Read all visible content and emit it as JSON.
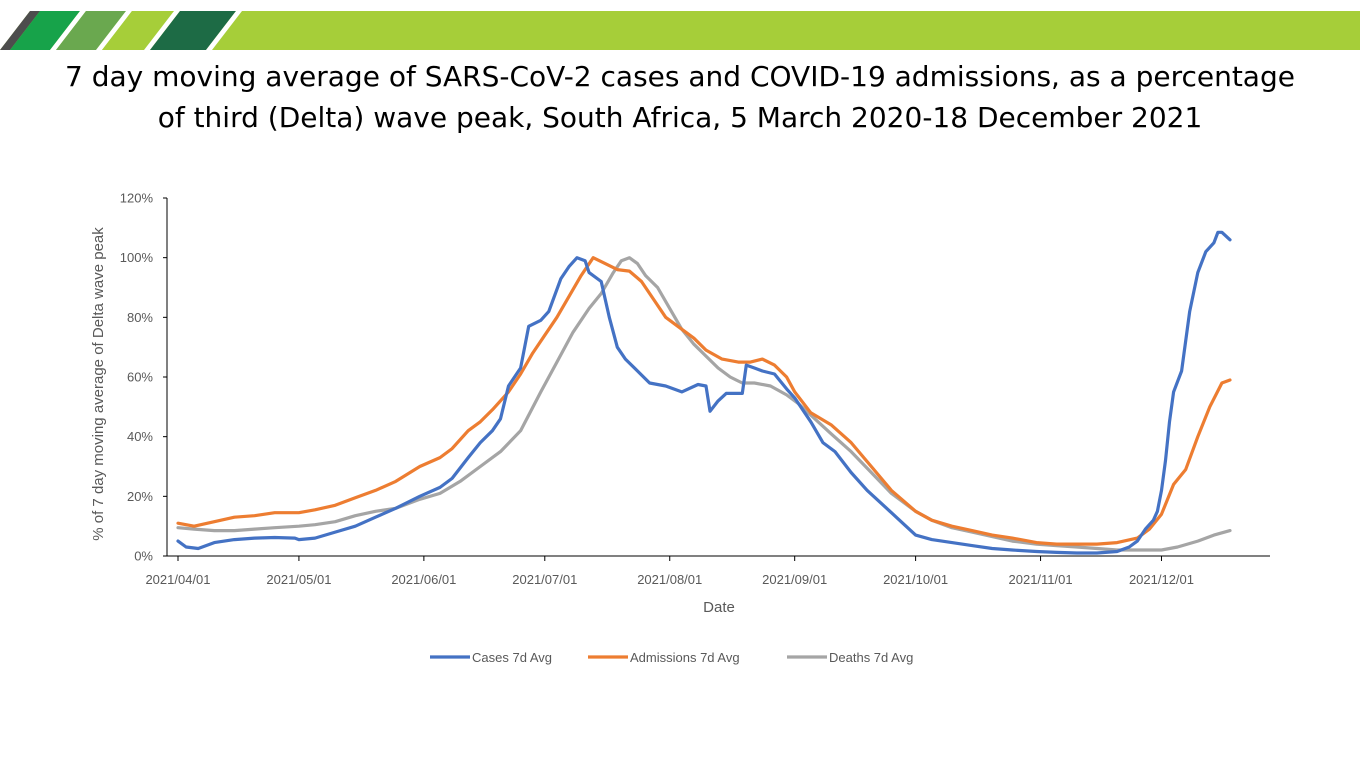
{
  "title": {
    "line1": "7 day moving average of SARS-CoV-2 cases and COVID-19 admissions, as a percentage",
    "line2": "of third (Delta) wave peak, South Africa, 5 March 2020-18 December 2021"
  },
  "colors": {
    "banner_green": "#a6ce39",
    "stripe_dark_green": "#17a34a",
    "stripe_mid_green": "#6aa84f",
    "stripe_light_green": "#a6ce39",
    "stripe_forest": "#1d6b45",
    "stripe_grey": "#4d4d4d",
    "cases": "#4472c4",
    "admissions": "#ed7d31",
    "deaths": "#a5a5a5"
  },
  "chart_data": {
    "type": "line",
    "xlabel": "Date",
    "ylabel": "% of 7 day moving average of Delta wave peak",
    "xlim": [
      "2021-04-01",
      "2021-12-18"
    ],
    "ylim": [
      0,
      120
    ],
    "y_ticks": [
      "0%",
      "20%",
      "40%",
      "60%",
      "80%",
      "100%",
      "120%"
    ],
    "x_ticks": [
      "2021/04/01",
      "2021/05/01",
      "2021/06/01",
      "2021/07/01",
      "2021/08/01",
      "2021/09/01",
      "2021/10/01",
      "2021/11/01",
      "2021/12/01"
    ],
    "legend_position": "bottom",
    "grid": false,
    "series": [
      {
        "name": "Cases 7d Avg",
        "color": "#4472c4",
        "points": [
          [
            "2021-04-01",
            5
          ],
          [
            "2021-04-03",
            3
          ],
          [
            "2021-04-06",
            2.5
          ],
          [
            "2021-04-10",
            4.5
          ],
          [
            "2021-04-15",
            5.5
          ],
          [
            "2021-04-20",
            6
          ],
          [
            "2021-04-25",
            6.2
          ],
          [
            "2021-04-30",
            6
          ],
          [
            "2021-05-01",
            5.5
          ],
          [
            "2021-05-05",
            6
          ],
          [
            "2021-05-10",
            8
          ],
          [
            "2021-05-15",
            10
          ],
          [
            "2021-05-20",
            13
          ],
          [
            "2021-05-25",
            16
          ],
          [
            "2021-05-31",
            20
          ],
          [
            "2021-06-05",
            23
          ],
          [
            "2021-06-08",
            26
          ],
          [
            "2021-06-12",
            33
          ],
          [
            "2021-06-15",
            38
          ],
          [
            "2021-06-18",
            42
          ],
          [
            "2021-06-20",
            46
          ],
          [
            "2021-06-22",
            57
          ],
          [
            "2021-06-25",
            63
          ],
          [
            "2021-06-27",
            77
          ],
          [
            "2021-06-30",
            79
          ],
          [
            "2021-07-02",
            82
          ],
          [
            "2021-07-05",
            93
          ],
          [
            "2021-07-07",
            97
          ],
          [
            "2021-07-09",
            100
          ],
          [
            "2021-07-11",
            99
          ],
          [
            "2021-07-12",
            95
          ],
          [
            "2021-07-15",
            92
          ],
          [
            "2021-07-17",
            80
          ],
          [
            "2021-07-19",
            70
          ],
          [
            "2021-07-21",
            66
          ],
          [
            "2021-07-24",
            62
          ],
          [
            "2021-07-27",
            58
          ],
          [
            "2021-07-31",
            57
          ],
          [
            "2021-08-04",
            55
          ],
          [
            "2021-08-08",
            57.5
          ],
          [
            "2021-08-10",
            57
          ],
          [
            "2021-08-11",
            48.5
          ],
          [
            "2021-08-13",
            52
          ],
          [
            "2021-08-15",
            54.5
          ],
          [
            "2021-08-19",
            54.5
          ],
          [
            "2021-08-20",
            64
          ],
          [
            "2021-08-22",
            63
          ],
          [
            "2021-08-24",
            62
          ],
          [
            "2021-08-27",
            61
          ],
          [
            "2021-08-30",
            56
          ],
          [
            "2021-09-01",
            53
          ],
          [
            "2021-09-05",
            45
          ],
          [
            "2021-09-08",
            38
          ],
          [
            "2021-09-11",
            35
          ],
          [
            "2021-09-15",
            28
          ],
          [
            "2021-09-19",
            22
          ],
          [
            "2021-09-23",
            17
          ],
          [
            "2021-09-27",
            12
          ],
          [
            "2021-10-01",
            7
          ],
          [
            "2021-10-05",
            5.5
          ],
          [
            "2021-10-10",
            4.5
          ],
          [
            "2021-10-15",
            3.5
          ],
          [
            "2021-10-20",
            2.5
          ],
          [
            "2021-10-25",
            2
          ],
          [
            "2021-10-31",
            1.5
          ],
          [
            "2021-11-05",
            1.2
          ],
          [
            "2021-11-10",
            1
          ],
          [
            "2021-11-15",
            1
          ],
          [
            "2021-11-20",
            1.5
          ],
          [
            "2021-11-23",
            3
          ],
          [
            "2021-11-25",
            5
          ],
          [
            "2021-11-27",
            9
          ],
          [
            "2021-11-29",
            12
          ],
          [
            "2021-11-30",
            15
          ],
          [
            "2021-12-01",
            22
          ],
          [
            "2021-12-02",
            32
          ],
          [
            "2021-12-03",
            45
          ],
          [
            "2021-12-04",
            55
          ],
          [
            "2021-12-06",
            62
          ],
          [
            "2021-12-08",
            82
          ],
          [
            "2021-12-10",
            95
          ],
          [
            "2021-12-12",
            102
          ],
          [
            "2021-12-14",
            105
          ],
          [
            "2021-12-15",
            108.5
          ],
          [
            "2021-12-16",
            108.5
          ],
          [
            "2021-12-18",
            106
          ]
        ]
      },
      {
        "name": "Admissions 7d Avg",
        "color": "#ed7d31",
        "points": [
          [
            "2021-04-01",
            11
          ],
          [
            "2021-04-05",
            10
          ],
          [
            "2021-04-10",
            11.5
          ],
          [
            "2021-04-15",
            13
          ],
          [
            "2021-04-20",
            13.5
          ],
          [
            "2021-04-25",
            14.5
          ],
          [
            "2021-05-01",
            14.5
          ],
          [
            "2021-05-05",
            15.5
          ],
          [
            "2021-05-10",
            17
          ],
          [
            "2021-05-15",
            19.5
          ],
          [
            "2021-05-20",
            22
          ],
          [
            "2021-05-25",
            25
          ],
          [
            "2021-05-31",
            30
          ],
          [
            "2021-06-05",
            33
          ],
          [
            "2021-06-08",
            36
          ],
          [
            "2021-06-12",
            42
          ],
          [
            "2021-06-15",
            45
          ],
          [
            "2021-06-18",
            49
          ],
          [
            "2021-06-22",
            55
          ],
          [
            "2021-06-25",
            61
          ],
          [
            "2021-06-28",
            68
          ],
          [
            "2021-07-01",
            74
          ],
          [
            "2021-07-04",
            80
          ],
          [
            "2021-07-07",
            87
          ],
          [
            "2021-07-10",
            94
          ],
          [
            "2021-07-13",
            100
          ],
          [
            "2021-07-16",
            98
          ],
          [
            "2021-07-19",
            96
          ],
          [
            "2021-07-22",
            95.5
          ],
          [
            "2021-07-25",
            92
          ],
          [
            "2021-07-28",
            86
          ],
          [
            "2021-07-31",
            80
          ],
          [
            "2021-08-03",
            77
          ],
          [
            "2021-08-07",
            73
          ],
          [
            "2021-08-10",
            69
          ],
          [
            "2021-08-14",
            66
          ],
          [
            "2021-08-18",
            65
          ],
          [
            "2021-08-21",
            65
          ],
          [
            "2021-08-24",
            66
          ],
          [
            "2021-08-27",
            64
          ],
          [
            "2021-08-30",
            60
          ],
          [
            "2021-09-01",
            55
          ],
          [
            "2021-09-05",
            48
          ],
          [
            "2021-09-10",
            44
          ],
          [
            "2021-09-15",
            38
          ],
          [
            "2021-09-20",
            30
          ],
          [
            "2021-09-25",
            22
          ],
          [
            "2021-10-01",
            15
          ],
          [
            "2021-10-05",
            12
          ],
          [
            "2021-10-10",
            10
          ],
          [
            "2021-10-15",
            8.5
          ],
          [
            "2021-10-20",
            7
          ],
          [
            "2021-10-25",
            6
          ],
          [
            "2021-10-31",
            4.5
          ],
          [
            "2021-11-05",
            4
          ],
          [
            "2021-11-10",
            4
          ],
          [
            "2021-11-15",
            4
          ],
          [
            "2021-11-20",
            4.5
          ],
          [
            "2021-11-25",
            6
          ],
          [
            "2021-11-28",
            9
          ],
          [
            "2021-12-01",
            14
          ],
          [
            "2021-12-04",
            24
          ],
          [
            "2021-12-07",
            29
          ],
          [
            "2021-12-10",
            40
          ],
          [
            "2021-12-13",
            50
          ],
          [
            "2021-12-16",
            58
          ],
          [
            "2021-12-18",
            59
          ]
        ]
      },
      {
        "name": "Deaths 7d Avg",
        "color": "#a5a5a5",
        "points": [
          [
            "2021-04-01",
            9.5
          ],
          [
            "2021-04-05",
            9
          ],
          [
            "2021-04-10",
            8.5
          ],
          [
            "2021-04-15",
            8.5
          ],
          [
            "2021-04-20",
            9
          ],
          [
            "2021-04-25",
            9.5
          ],
          [
            "2021-05-01",
            10
          ],
          [
            "2021-05-05",
            10.5
          ],
          [
            "2021-05-10",
            11.5
          ],
          [
            "2021-05-15",
            13.5
          ],
          [
            "2021-05-20",
            15
          ],
          [
            "2021-05-25",
            16
          ],
          [
            "2021-05-31",
            19
          ],
          [
            "2021-06-05",
            21
          ],
          [
            "2021-06-10",
            25
          ],
          [
            "2021-06-15",
            30
          ],
          [
            "2021-06-20",
            35
          ],
          [
            "2021-06-25",
            42
          ],
          [
            "2021-06-30",
            55
          ],
          [
            "2021-07-04",
            65
          ],
          [
            "2021-07-08",
            75
          ],
          [
            "2021-07-12",
            83
          ],
          [
            "2021-07-15",
            88
          ],
          [
            "2021-07-18",
            95
          ],
          [
            "2021-07-20",
            99
          ],
          [
            "2021-07-22",
            100
          ],
          [
            "2021-07-24",
            98
          ],
          [
            "2021-07-26",
            94
          ],
          [
            "2021-07-29",
            90
          ],
          [
            "2021-08-01",
            83
          ],
          [
            "2021-08-04",
            76
          ],
          [
            "2021-08-07",
            71
          ],
          [
            "2021-08-10",
            67
          ],
          [
            "2021-08-13",
            63
          ],
          [
            "2021-08-16",
            60
          ],
          [
            "2021-08-19",
            58
          ],
          [
            "2021-08-22",
            58
          ],
          [
            "2021-08-26",
            57
          ],
          [
            "2021-08-30",
            54
          ],
          [
            "2021-09-02",
            51
          ],
          [
            "2021-09-06",
            46
          ],
          [
            "2021-09-10",
            41
          ],
          [
            "2021-09-15",
            35
          ],
          [
            "2021-09-20",
            28
          ],
          [
            "2021-09-25",
            21
          ],
          [
            "2021-10-01",
            15
          ],
          [
            "2021-10-05",
            12
          ],
          [
            "2021-10-10",
            9.5
          ],
          [
            "2021-10-15",
            8
          ],
          [
            "2021-10-20",
            6.5
          ],
          [
            "2021-10-25",
            5
          ],
          [
            "2021-10-31",
            4
          ],
          [
            "2021-11-05",
            3.5
          ],
          [
            "2021-11-10",
            3
          ],
          [
            "2021-11-15",
            2.5
          ],
          [
            "2021-11-20",
            2
          ],
          [
            "2021-11-25",
            2
          ],
          [
            "2021-12-01",
            2
          ],
          [
            "2021-12-05",
            3
          ],
          [
            "2021-12-10",
            5
          ],
          [
            "2021-12-14",
            7
          ],
          [
            "2021-12-18",
            8.5
          ]
        ]
      }
    ]
  }
}
